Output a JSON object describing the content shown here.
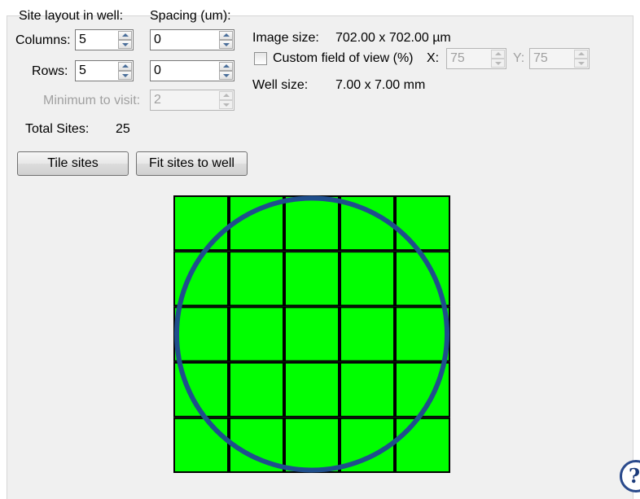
{
  "layout_section": {
    "title": "Site layout in well:",
    "columns_label": "Columns:",
    "columns_value": "5",
    "rows_label": "Rows:",
    "rows_value": "5"
  },
  "spacing_section": {
    "title": "Spacing (um):",
    "x_value": "0",
    "y_value": "0"
  },
  "minimum": {
    "label": "Minimum to visit:",
    "value": "2"
  },
  "total": {
    "label": "Total Sites:",
    "value": "25"
  },
  "buttons": {
    "tile_label": "Tile sites",
    "fit_label": "Fit sites to well"
  },
  "image_info": {
    "size_label": "Image size:",
    "size_value": "702.00 x 702.00  µm",
    "custom_fov_label": "Custom field of view (%)",
    "custom_fov_checked": false,
    "x_label": "X:",
    "x_value": "75",
    "y_label": "Y:",
    "y_value": "75",
    "well_label": "Well size:",
    "well_value": "7.00 x 7.00 mm"
  },
  "grid_preview": {
    "columns": 5,
    "rows": 5,
    "tile_color": "#00ff00",
    "line_color": "#000000",
    "well_circle_color": "#1f4e8c"
  },
  "help_icon": {
    "glyph": "?"
  }
}
